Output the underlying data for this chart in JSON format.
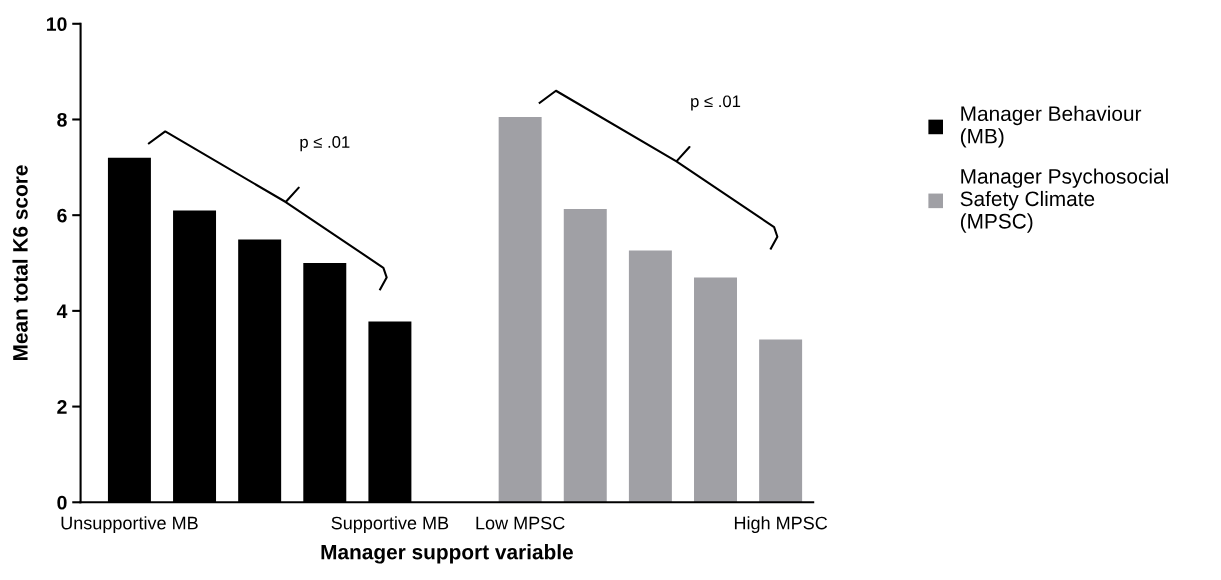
{
  "chart_data": {
    "type": "bar",
    "xlabel": "Manager support variable",
    "ylabel": "Mean total K6 score",
    "categories": [
      "Unsupportive MB",
      null,
      null,
      null,
      "Supportive MB",
      null,
      "Low MPSC",
      null,
      null,
      null,
      "High MPSC"
    ],
    "series": [
      {
        "name": "Manager Behaviour (MB)",
        "color": "#000000",
        "values": [
          7.2,
          6.1,
          5.49,
          5.0,
          3.78,
          null,
          null,
          null,
          null,
          null,
          null
        ]
      },
      {
        "name": "Manager Psychosocial Safety Climate (MPSC)",
        "color": "#a0a0a5",
        "values": [
          null,
          null,
          null,
          null,
          null,
          null,
          8.05,
          6.13,
          5.26,
          4.7,
          3.4
        ]
      }
    ],
    "ylim": [
      0,
      10
    ],
    "yticks": [
      0,
      2,
      4,
      6,
      8,
      10
    ],
    "annotations": [
      "p ≤ .01",
      "p ≤ .01"
    ],
    "legend": "right",
    "grid": false
  }
}
